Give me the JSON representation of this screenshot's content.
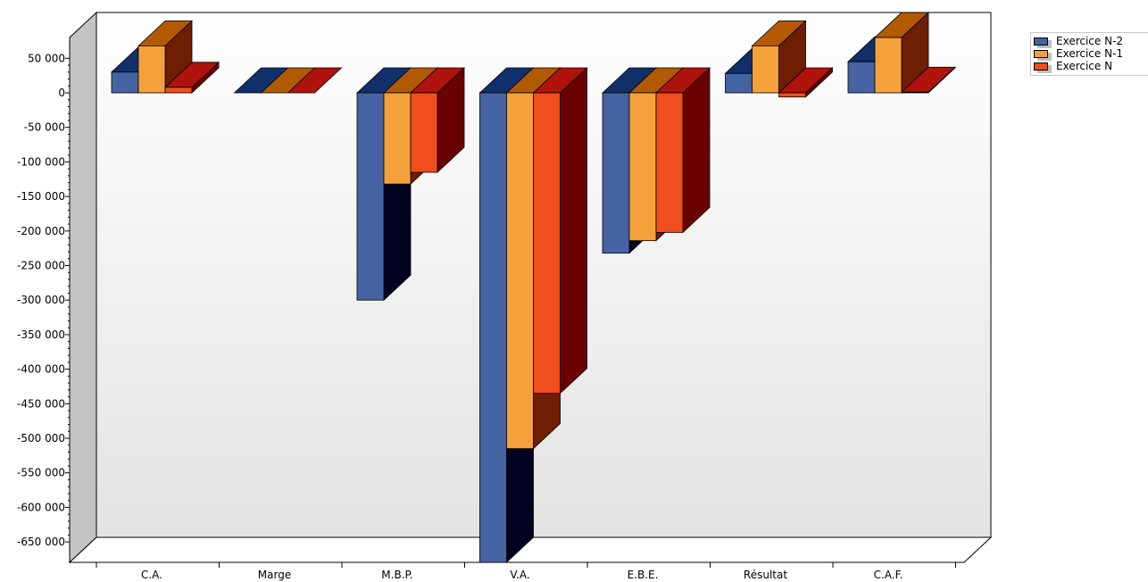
{
  "chart_data": {
    "type": "bar",
    "categories": [
      "C.A.",
      "Marge",
      "M.B.P.",
      "V.A.",
      "E.B.E.",
      "Résultat",
      "C.A.F."
    ],
    "series": [
      {
        "name": "Exercice N-2",
        "color": "#4563a3",
        "values": [
          30000,
          0,
          -300000,
          -680000,
          -232000,
          28000,
          45000
        ]
      },
      {
        "name": "Exercice N-1",
        "color": "#f5a13b",
        "values": [
          68000,
          0,
          -132000,
          -515000,
          -214000,
          68000,
          80000
        ]
      },
      {
        "name": "Exercice N",
        "color": "#f04e1c",
        "values": [
          8000,
          0,
          -115000,
          -435000,
          -202000,
          -6000,
          1000
        ]
      }
    ],
    "y_ticks": [
      "50 000",
      "0",
      "-50 000",
      "-100 000",
      "-150 000",
      "-200 000",
      "-250 000",
      "-300 000",
      "-350 000",
      "-400 000",
      "-450 000",
      "-500 000",
      "-550 000",
      "-600 000",
      "-650 000"
    ],
    "ylim": [
      -680000,
      80000
    ],
    "title": "",
    "xlabel": "",
    "ylabel": "",
    "legend_position": "top-right",
    "grid": false,
    "three_d": true
  }
}
